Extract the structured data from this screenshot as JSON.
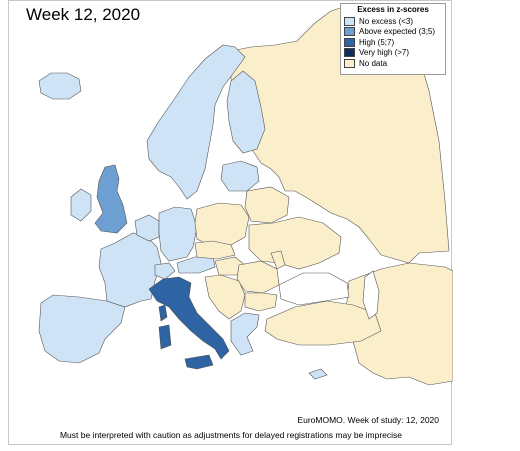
{
  "title": "Week 12, 2020",
  "legend": {
    "title": "Excess in z-scores",
    "items": [
      {
        "label": "No excess (<3)",
        "color": "#cfe3f6"
      },
      {
        "label": "Above expected (3;5)",
        "color": "#6e9fd3"
      },
      {
        "label": "High (5;7)",
        "color": "#2e64a4"
      },
      {
        "label": "Very high (>7)",
        "color": "#0c2d5e"
      },
      {
        "label": "No data",
        "color": "#fbeecb"
      }
    ]
  },
  "credit": "EuroMOMO. Week of study: 12, 2020",
  "caveat": "Must be interpreted with caution as adjustments for delayed registrations may be imprecise",
  "regions": [
    {
      "name": "russia",
      "category": "No data"
    },
    {
      "name": "scandinavia",
      "category": "No excess (<3)"
    },
    {
      "name": "finland",
      "category": "No excess (<3)"
    },
    {
      "name": "iceland",
      "category": "No excess (<3)"
    },
    {
      "name": "ireland",
      "category": "No excess (<3)"
    },
    {
      "name": "great-britain",
      "category": "Above expected (3;5)"
    },
    {
      "name": "france",
      "category": "No excess (<3)"
    },
    {
      "name": "iberia",
      "category": "No excess (<3)"
    },
    {
      "name": "benelux",
      "category": "No excess (<3)"
    },
    {
      "name": "germany",
      "category": "No excess (<3)"
    },
    {
      "name": "switzerland",
      "category": "No excess (<3)"
    },
    {
      "name": "austria",
      "category": "No excess (<3)"
    },
    {
      "name": "baltics",
      "category": "No excess (<3)"
    },
    {
      "name": "italy",
      "category": "High (5;7)"
    },
    {
      "name": "sardinia",
      "category": "High (5;7)"
    },
    {
      "name": "sicily",
      "category": "High (5;7)"
    },
    {
      "name": "corsica",
      "category": "High (5;7)"
    },
    {
      "name": "greece",
      "category": "No excess (<3)"
    },
    {
      "name": "cyprus",
      "category": "No excess (<3)"
    },
    {
      "name": "poland",
      "category": "No data"
    },
    {
      "name": "belarus",
      "category": "No data"
    },
    {
      "name": "ukraine",
      "category": "No data"
    },
    {
      "name": "kazakhstan",
      "category": "No data"
    },
    {
      "name": "turkey",
      "category": "No data"
    },
    {
      "name": "czechia-slovakia",
      "category": "No data"
    },
    {
      "name": "hungary",
      "category": "No data"
    },
    {
      "name": "romania",
      "category": "No data"
    },
    {
      "name": "balkans",
      "category": "No data"
    },
    {
      "name": "moldova",
      "category": "No data"
    },
    {
      "name": "bulgaria",
      "category": "No data"
    }
  ]
}
